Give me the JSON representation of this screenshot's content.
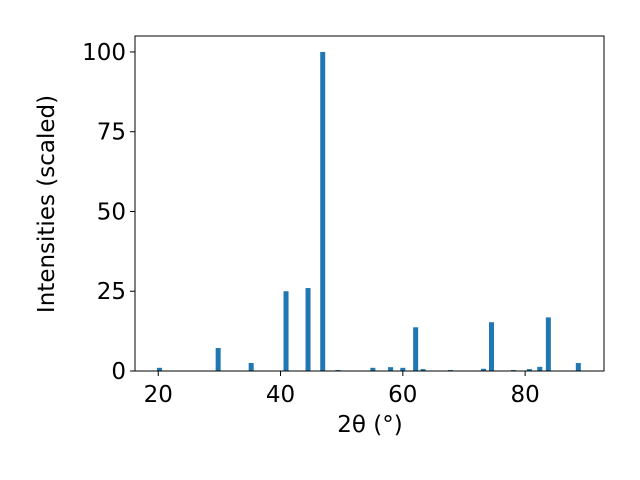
{
  "chart_data": {
    "type": "bar",
    "x_label": "2θ (°)",
    "y_label": "Intensities (scaled)",
    "x": [
      20.2,
      29.8,
      35.2,
      40.9,
      44.5,
      46.9,
      49.4,
      55.1,
      58.0,
      60.0,
      62.1,
      63.3,
      67.8,
      73.2,
      74.5,
      78.1,
      80.7,
      82.4,
      83.8,
      88.7
    ],
    "values": [
      1,
      7.2,
      2.5,
      25,
      26,
      100,
      0.3,
      1,
      1.2,
      1,
      13.7,
      0.6,
      0.3,
      0.7,
      15.3,
      0.3,
      0.6,
      1.3,
      16.8,
      2.5
    ],
    "color": "#1f77b4",
    "xlim": [
      16.2,
      92.9
    ],
    "xticks": [
      20,
      40,
      60,
      80
    ],
    "ylim": [
      0,
      105
    ],
    "yticks": [
      0,
      25,
      50,
      75,
      100
    ],
    "grid": false
  }
}
